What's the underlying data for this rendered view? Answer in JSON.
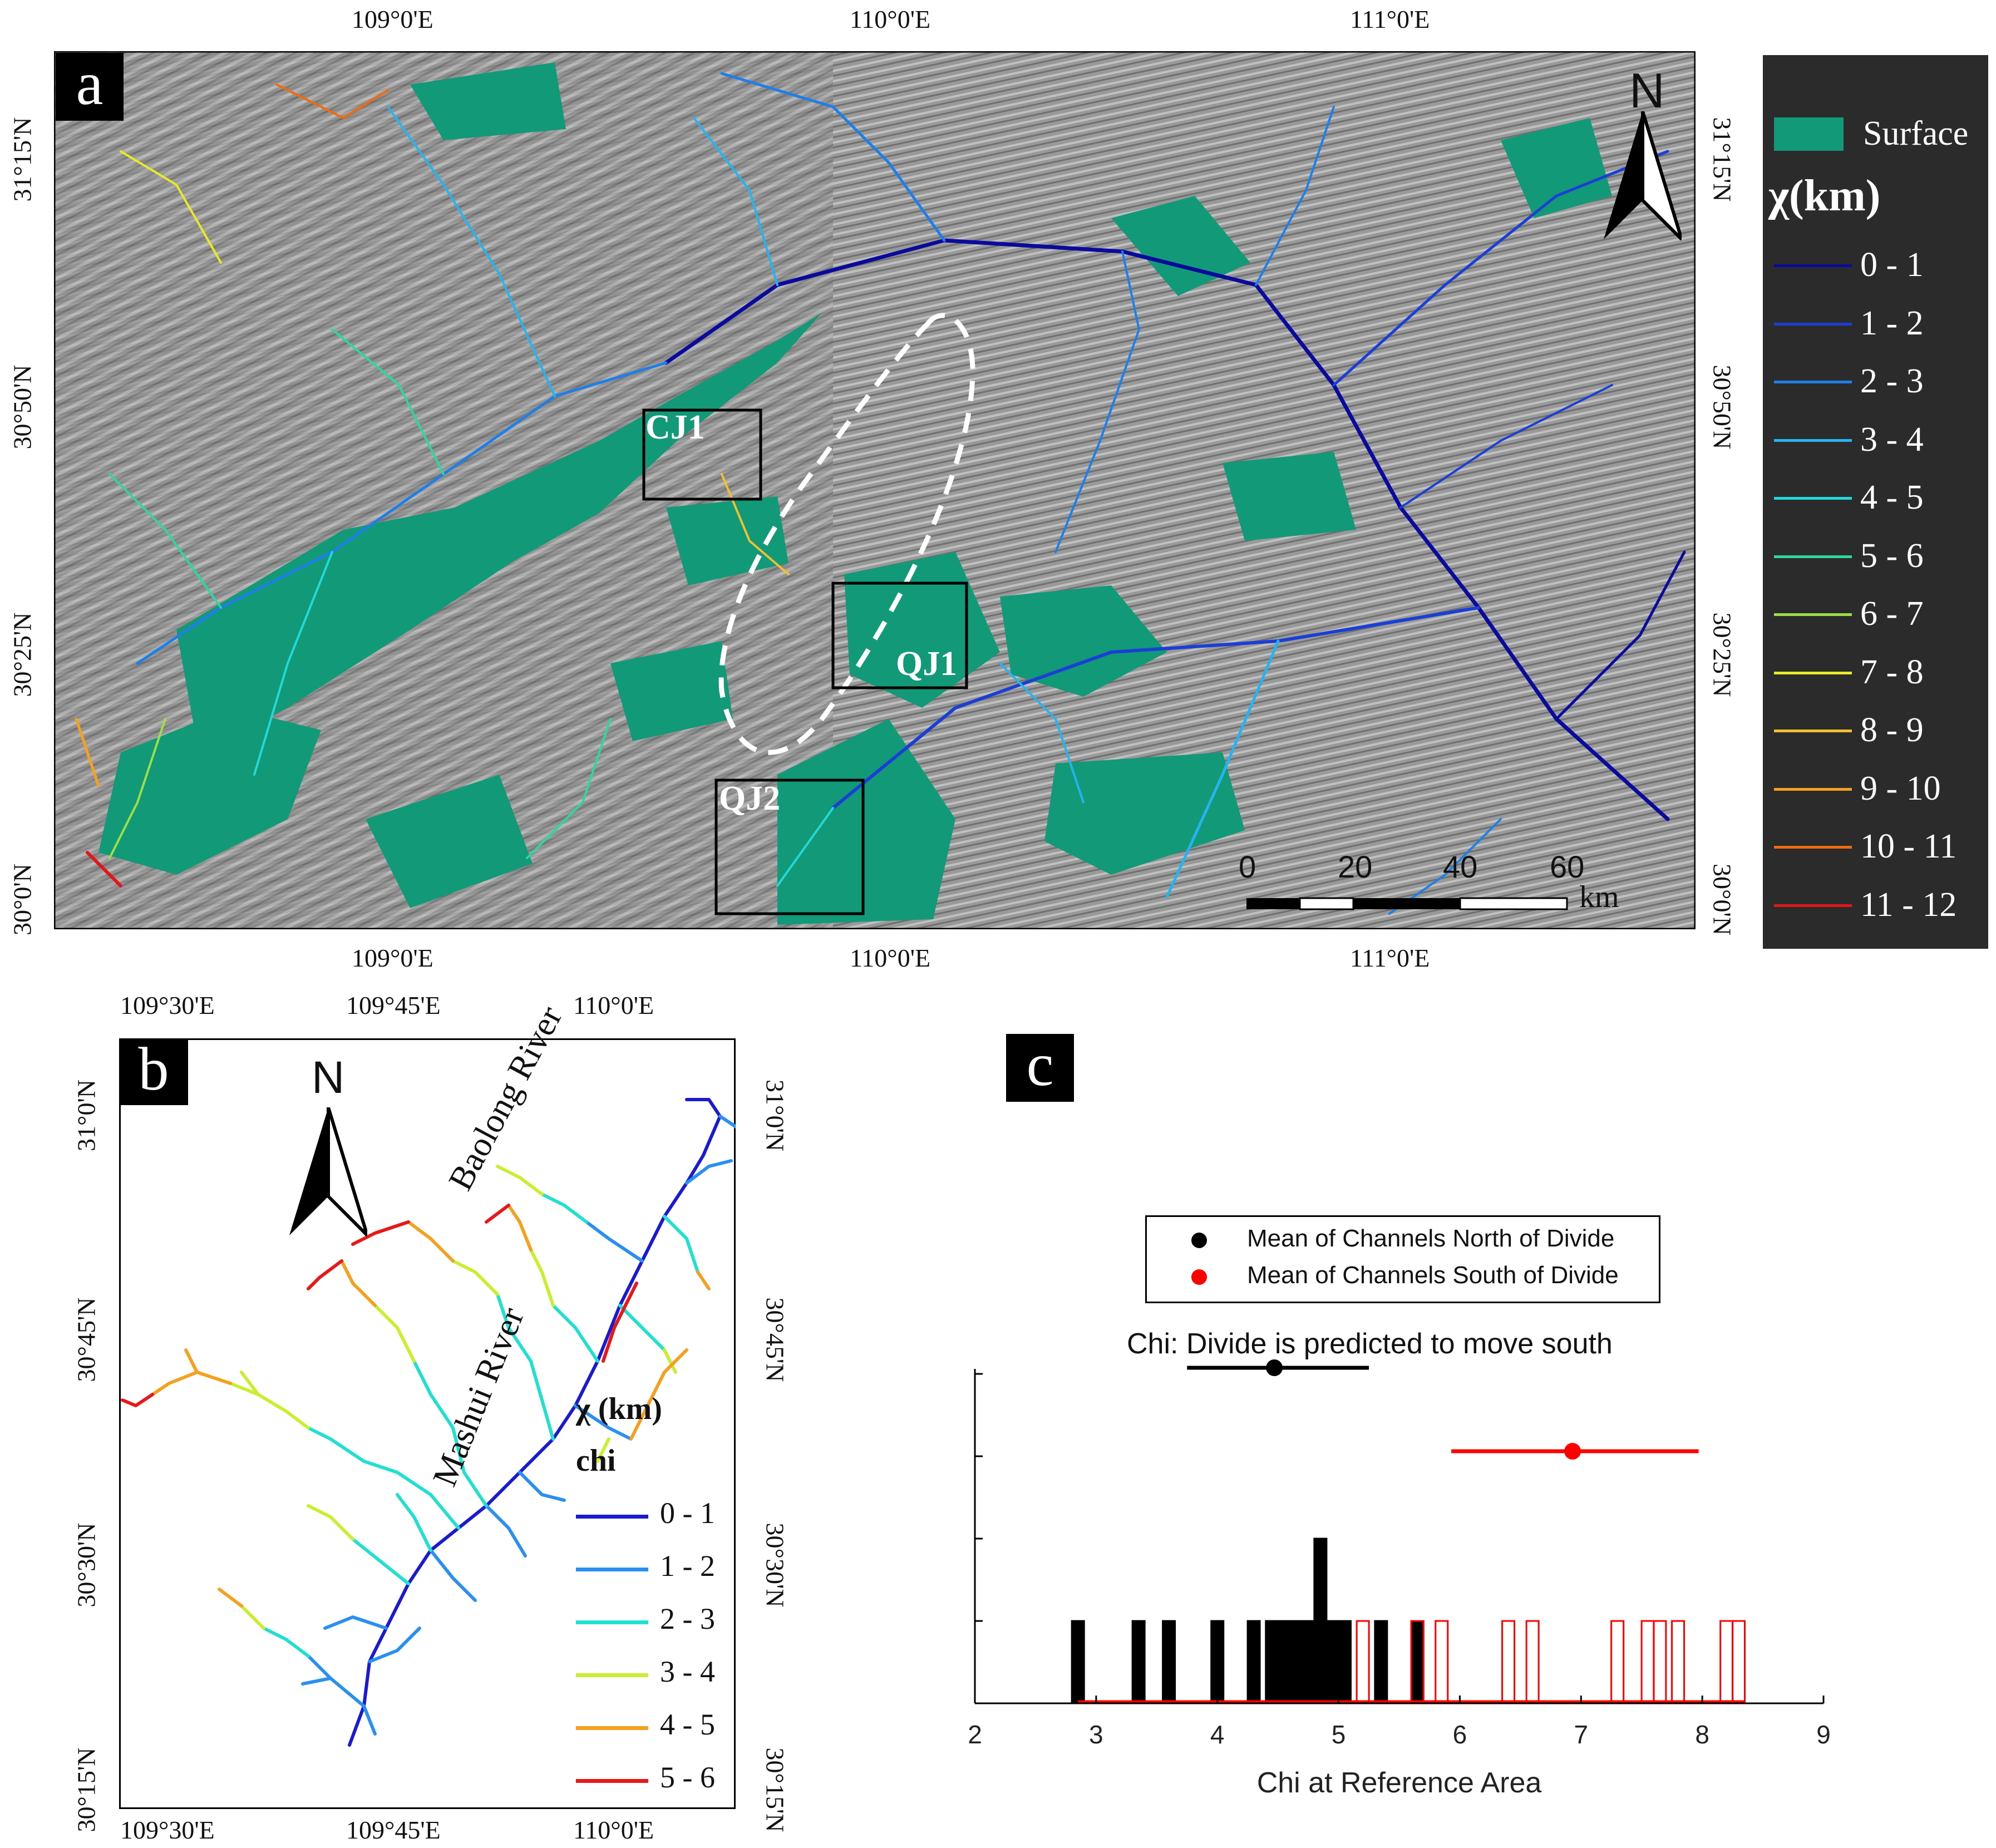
{
  "panels": {
    "a": {
      "letter": "a",
      "lon_ticks": [
        "109°0'E",
        "110°0'E",
        "111°0'E"
      ],
      "lat_ticks": [
        "31°15'N",
        "30°50'N",
        "30°25'N",
        "30°0'N"
      ],
      "boxes": [
        "CJ1",
        "QJ1",
        "QJ2"
      ],
      "north_label": "N",
      "scale_labels": [
        "0",
        "20",
        "40",
        "60"
      ],
      "scale_unit": "km",
      "legend": {
        "surface_label": "Surface",
        "surface_color": "#129a78",
        "title": "χ(km)",
        "items": [
          {
            "label": "0 - 1",
            "color": "#0a0a9c"
          },
          {
            "label": "1 - 2",
            "color": "#1a3fd6"
          },
          {
            "label": "2 - 3",
            "color": "#1f7fe8"
          },
          {
            "label": "3 - 4",
            "color": "#26b4f0"
          },
          {
            "label": "4 - 5",
            "color": "#22d8d8"
          },
          {
            "label": "5 - 6",
            "color": "#2ed6a0"
          },
          {
            "label": "6 - 7",
            "color": "#9be04a"
          },
          {
            "label": "7 - 8",
            "color": "#e8e82a"
          },
          {
            "label": "8 - 9",
            "color": "#f0c030"
          },
          {
            "label": "9 - 10",
            "color": "#f4a020"
          },
          {
            "label": "10 - 11",
            "color": "#f06a10"
          },
          {
            "label": "11 - 12",
            "color": "#e01818"
          }
        ]
      }
    },
    "b": {
      "letter": "b",
      "lon_ticks": [
        "109°30'E",
        "109°45'E",
        "110°0'E"
      ],
      "lat_ticks": [
        "31°0'N",
        "30°45'N",
        "30°30'N",
        "30°15'N"
      ],
      "north_label": "N",
      "river_labels": [
        "Baolong River",
        "Mashui River"
      ],
      "legend": {
        "title": "χ (km)",
        "subtitle": "chi",
        "items": [
          {
            "label": "0 - 1",
            "color": "#1a1ad0"
          },
          {
            "label": "1 - 2",
            "color": "#2a8ff0"
          },
          {
            "label": "2 - 3",
            "color": "#22e0d0"
          },
          {
            "label": "3 - 4",
            "color": "#c8f030"
          },
          {
            "label": "4 - 5",
            "color": "#f4a020"
          },
          {
            "label": "5 - 6",
            "color": "#e81818"
          }
        ]
      }
    },
    "c": {
      "letter": "c",
      "legend": [
        {
          "label": "Mean of Channels North of Divide",
          "color": "#000000"
        },
        {
          "label": "Mean of Channels South of Divide",
          "color": "#ff0000"
        }
      ],
      "annotation": "Chi: Divide is predicted to move south"
    }
  },
  "chart_data": {
    "type": "bar",
    "title": "Chi: Divide is predicted to move south",
    "xlabel": "Chi at Reference Area",
    "xlim": [
      2,
      9
    ],
    "xticks": [
      "2",
      "3",
      "4",
      "5",
      "6",
      "7",
      "8",
      "9"
    ],
    "series": [
      {
        "name": "Mean of Channels North of Divide",
        "color": "#000000",
        "style": "filled",
        "bins": [
          [
            2.85,
            1
          ],
          [
            3.35,
            1
          ],
          [
            3.6,
            1
          ],
          [
            4.0,
            1
          ],
          [
            4.3,
            1
          ],
          [
            4.45,
            1
          ],
          [
            4.55,
            1
          ],
          [
            4.65,
            1
          ],
          [
            4.75,
            1
          ],
          [
            4.85,
            2
          ],
          [
            4.95,
            1
          ],
          [
            5.05,
            1
          ],
          [
            5.35,
            1
          ],
          [
            5.65,
            1
          ]
        ],
        "mean": 4.47,
        "err": [
          3.75,
          5.25
        ]
      },
      {
        "name": "Mean of Channels South of Divide",
        "color": "#ff0000",
        "style": "outline",
        "bins": [
          [
            5.2,
            1
          ],
          [
            5.65,
            1
          ],
          [
            5.85,
            1
          ],
          [
            6.4,
            1
          ],
          [
            6.6,
            1
          ],
          [
            7.3,
            1
          ],
          [
            7.55,
            1
          ],
          [
            7.65,
            1
          ],
          [
            7.8,
            1
          ],
          [
            8.2,
            1
          ],
          [
            8.3,
            1
          ]
        ],
        "mean": 6.93,
        "err": [
          5.93,
          7.97
        ]
      }
    ]
  }
}
